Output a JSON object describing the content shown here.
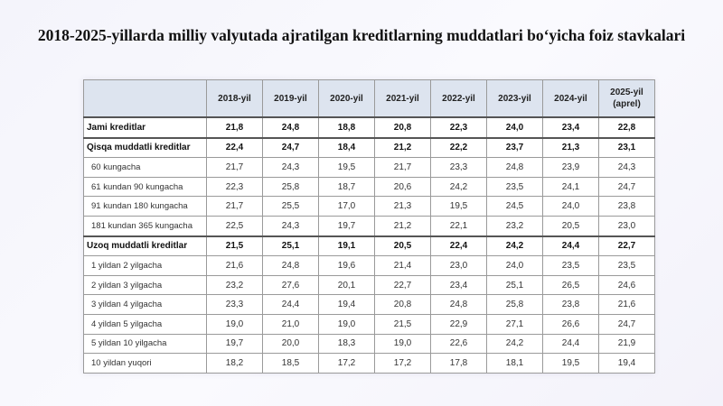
{
  "title": "2018-2025-yillarda milliy valyutada ajratilgan kreditlarning muddatlari bo‘yicha foiz stavkalari",
  "columns": [
    "2018-yil",
    "2019-yil",
    "2020-yil",
    "2021-yil",
    "2022-yil",
    "2023-yil",
    "2024-yil",
    "2025-yil (aprel)"
  ],
  "rows": [
    {
      "label": "Jami kreditlar",
      "bold": true,
      "values": [
        "21,8",
        "24,8",
        "18,8",
        "20,8",
        "22,3",
        "24,0",
        "23,4",
        "22,8"
      ]
    },
    {
      "label": "Qisqa muddatli kreditlar",
      "bold": true,
      "values": [
        "22,4",
        "24,7",
        "18,4",
        "21,2",
        "22,2",
        "23,7",
        "21,3",
        "23,1"
      ]
    },
    {
      "label": "60 kungacha",
      "bold": false,
      "values": [
        "21,7",
        "24,3",
        "19,5",
        "21,7",
        "23,3",
        "24,8",
        "23,9",
        "24,3"
      ]
    },
    {
      "label": "61 kundan 90 kungacha",
      "bold": false,
      "values": [
        "22,3",
        "25,8",
        "18,7",
        "20,6",
        "24,2",
        "23,5",
        "24,1",
        "24,7"
      ]
    },
    {
      "label": "91 kundan 180 kungacha",
      "bold": false,
      "values": [
        "21,7",
        "25,5",
        "17,0",
        "21,3",
        "19,5",
        "24,5",
        "24,0",
        "23,8"
      ]
    },
    {
      "label": "181 kundan 365 kungacha",
      "bold": false,
      "values": [
        "22,5",
        "24,3",
        "19,7",
        "21,2",
        "22,1",
        "23,2",
        "20,5",
        "23,0"
      ]
    },
    {
      "label": "Uzoq muddatli kreditlar",
      "bold": true,
      "values": [
        "21,5",
        "25,1",
        "19,1",
        "20,5",
        "22,4",
        "24,2",
        "24,4",
        "22,7"
      ]
    },
    {
      "label": "1 yildan 2 yilgacha",
      "bold": false,
      "values": [
        "21,6",
        "24,8",
        "19,6",
        "21,4",
        "23,0",
        "24,0",
        "23,5",
        "23,5"
      ]
    },
    {
      "label": "2 yildan 3 yilgacha",
      "bold": false,
      "values": [
        "23,2",
        "27,6",
        "20,1",
        "22,7",
        "23,4",
        "25,1",
        "26,5",
        "24,6"
      ]
    },
    {
      "label": "3 yildan 4 yilgacha",
      "bold": false,
      "values": [
        "23,3",
        "24,4",
        "19,4",
        "20,8",
        "24,8",
        "25,8",
        "23,8",
        "21,6"
      ]
    },
    {
      "label": "4 yildan 5 yilgacha",
      "bold": false,
      "values": [
        "19,0",
        "21,0",
        "19,0",
        "21,5",
        "22,9",
        "27,1",
        "26,6",
        "24,7"
      ]
    },
    {
      "label": "5 yildan 10 yilgacha",
      "bold": false,
      "values": [
        "19,7",
        "20,0",
        "18,3",
        "19,0",
        "22,6",
        "24,2",
        "24,4",
        "21,9"
      ]
    },
    {
      "label": "10 yildan yuqori",
      "bold": false,
      "values": [
        "18,2",
        "18,5",
        "17,2",
        "17,2",
        "17,8",
        "18,1",
        "19,5",
        "19,4"
      ]
    }
  ]
}
